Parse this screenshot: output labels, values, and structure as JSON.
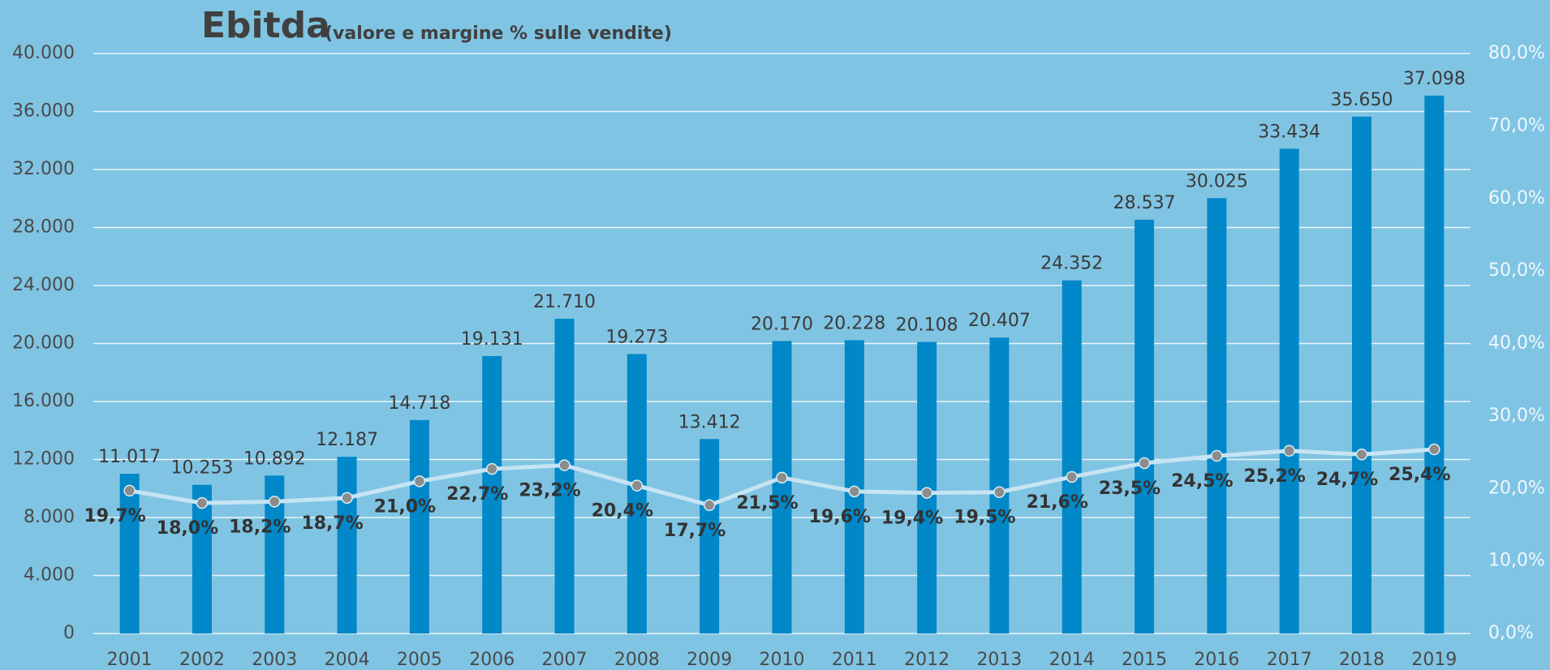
{
  "chart_data": {
    "type": "bar-line",
    "title": "Ebitda",
    "subtitle": "(valore e margine % sulle vendite)",
    "categories": [
      "2001",
      "2002",
      "2003",
      "2004",
      "2005",
      "2006",
      "2007",
      "2008",
      "2009",
      "2010",
      "2011",
      "2012",
      "2013",
      "2014",
      "2015",
      "2016",
      "2017",
      "2018",
      "2019"
    ],
    "series": [
      {
        "type": "bar",
        "color": "#0088c8",
        "values": [
          11017,
          10253,
          10892,
          12187,
          14718,
          19131,
          21710,
          19273,
          13412,
          20170,
          20228,
          20108,
          20407,
          24352,
          28537,
          30025,
          33434,
          35650,
          37098
        ],
        "value_labels": [
          "11.017",
          "10.253",
          "10.892",
          "12.187",
          "14.718",
          "19.131",
          "21.710",
          "19.273",
          "13.412",
          "20.170",
          "20.228",
          "20.108",
          "20.407",
          "24.352",
          "28.537",
          "30.025",
          "33.434",
          "35.650",
          "37.098"
        ]
      },
      {
        "type": "line",
        "axis": "y2",
        "color": "#c6e4f3",
        "marker_color": "#8c8c8c",
        "values": [
          19.7,
          18.0,
          18.2,
          18.7,
          21.0,
          22.7,
          23.2,
          20.4,
          17.7,
          21.5,
          19.6,
          19.4,
          19.5,
          21.6,
          23.5,
          24.5,
          25.2,
          24.7,
          25.4
        ],
        "value_labels": [
          "19,7%",
          "18,0%",
          "18,2%",
          "18,7%",
          "21,0%",
          "22,7%",
          "23,2%",
          "20,4%",
          "17,7%",
          "21,5%",
          "19,6%",
          "19,4%",
          "19,5%",
          "21,6%",
          "23,5%",
          "24,5%",
          "25,2%",
          "24,7%",
          "25,4%"
        ]
      }
    ],
    "ylim": [
      0,
      40000
    ],
    "yticks": [
      0,
      {
        "value": 4000,
        "label": "4.000"
      },
      {
        "value": 8000,
        "label": "8.000"
      },
      {
        "value": 12000,
        "label": "12.000"
      },
      {
        "value": 16000,
        "label": "16.000"
      },
      {
        "value": 20000,
        "label": "20.000"
      },
      {
        "value": 24000,
        "label": "24.000"
      },
      {
        "value": 28000,
        "label": "28.000"
      },
      {
        "value": 32000,
        "label": "32.000"
      },
      {
        "value": 36000,
        "label": "36.000"
      },
      {
        "value": 40000,
        "label": "40.000"
      }
    ],
    "y2lim": [
      0,
      80
    ],
    "y2ticks": [
      {
        "value": 0,
        "label": "0,0%"
      },
      {
        "value": 10,
        "label": "10,0%"
      },
      {
        "value": 20,
        "label": "20,0%"
      },
      {
        "value": 30,
        "label": "30,0%"
      },
      {
        "value": 40,
        "label": "40,0%"
      },
      {
        "value": 50,
        "label": "50,0%"
      },
      {
        "value": 60,
        "label": "60,0%"
      },
      {
        "value": 70,
        "label": "70,0%"
      },
      {
        "value": 80,
        "label": "80,0%"
      }
    ],
    "grid": true
  }
}
